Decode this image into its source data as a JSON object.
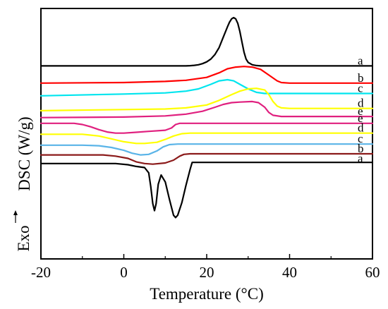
{
  "chart_data": {
    "type": "line",
    "title": "",
    "xlabel": "Temperature (°C)",
    "ylabel": "DSC (W/g)",
    "exo_label": "Exo",
    "xlim": [
      -20,
      60
    ],
    "ylim": [
      -21.8,
      0
    ],
    "grid": false,
    "legend": "none",
    "x_ticks": [
      -20,
      0,
      20,
      40,
      60
    ],
    "x_tick_labels": [
      "-20",
      "0",
      "20",
      "40",
      "60"
    ],
    "series": [
      {
        "label": "a",
        "color": "#000000",
        "baseline": -5.0,
        "points": [
          [
            -20,
            -5.0
          ],
          [
            15,
            -5.0
          ],
          [
            16,
            -4.98
          ],
          [
            17,
            -4.95
          ],
          [
            18,
            -4.9
          ],
          [
            19,
            -4.8
          ],
          [
            20,
            -4.65
          ],
          [
            21,
            -4.4
          ],
          [
            22,
            -4.0
          ],
          [
            23,
            -3.4
          ],
          [
            24,
            -2.5
          ],
          [
            25,
            -1.6
          ],
          [
            25.5,
            -1.2
          ],
          [
            26,
            -0.9
          ],
          [
            26.5,
            -0.8
          ],
          [
            27,
            -0.9
          ],
          [
            27.5,
            -1.3
          ],
          [
            28,
            -2.0
          ],
          [
            28.5,
            -2.9
          ],
          [
            29,
            -3.8
          ],
          [
            29.5,
            -4.4
          ],
          [
            30,
            -4.7
          ],
          [
            31,
            -4.9
          ],
          [
            32,
            -4.97
          ],
          [
            33,
            -5.0
          ],
          [
            60,
            -5.0
          ]
        ]
      },
      {
        "label": "b",
        "color": "#ff0000",
        "baseline": -6.5,
        "points": [
          [
            -20,
            -6.5
          ],
          [
            0,
            -6.45
          ],
          [
            10,
            -6.35
          ],
          [
            15,
            -6.25
          ],
          [
            20,
            -6.0
          ],
          [
            23,
            -5.6
          ],
          [
            25,
            -5.25
          ],
          [
            27,
            -5.1
          ],
          [
            29,
            -5.05
          ],
          [
            31,
            -5.1
          ],
          [
            33,
            -5.3
          ],
          [
            35,
            -5.8
          ],
          [
            37,
            -6.3
          ],
          [
            38,
            -6.45
          ],
          [
            40,
            -6.5
          ],
          [
            60,
            -6.5
          ]
        ]
      },
      {
        "label": "c",
        "color": "#00e5ee",
        "baseline": -7.4,
        "points": [
          [
            -20,
            -7.6
          ],
          [
            0,
            -7.45
          ],
          [
            10,
            -7.35
          ],
          [
            15,
            -7.2
          ],
          [
            18,
            -7.0
          ],
          [
            21,
            -6.6
          ],
          [
            23,
            -6.3
          ],
          [
            25,
            -6.2
          ],
          [
            26.5,
            -6.3
          ],
          [
            28,
            -6.6
          ],
          [
            30,
            -7.0
          ],
          [
            32,
            -7.3
          ],
          [
            34,
            -7.4
          ],
          [
            40,
            -7.4
          ],
          [
            60,
            -7.4
          ]
        ]
      },
      {
        "label": "d",
        "color": "#ffff00",
        "baseline": -8.7,
        "points": [
          [
            -20,
            -8.9
          ],
          [
            0,
            -8.8
          ],
          [
            10,
            -8.75
          ],
          [
            15,
            -8.65
          ],
          [
            20,
            -8.4
          ],
          [
            23,
            -8.0
          ],
          [
            26,
            -7.5
          ],
          [
            28,
            -7.2
          ],
          [
            30,
            -7.0
          ],
          [
            32,
            -6.95
          ],
          [
            34,
            -7.1
          ],
          [
            35,
            -7.5
          ],
          [
            36,
            -8.1
          ],
          [
            37,
            -8.5
          ],
          [
            38,
            -8.65
          ],
          [
            40,
            -8.7
          ],
          [
            60,
            -8.7
          ]
        ]
      },
      {
        "label": "e",
        "color": "#e0207f",
        "baseline": -9.4,
        "points": [
          [
            -20,
            -9.5
          ],
          [
            0,
            -9.45
          ],
          [
            10,
            -9.35
          ],
          [
            15,
            -9.2
          ],
          [
            19,
            -8.95
          ],
          [
            22,
            -8.6
          ],
          [
            24,
            -8.35
          ],
          [
            26,
            -8.2
          ],
          [
            28,
            -8.15
          ],
          [
            31,
            -8.1
          ],
          [
            32.5,
            -8.2
          ],
          [
            34,
            -8.6
          ],
          [
            35,
            -9.05
          ],
          [
            36,
            -9.3
          ],
          [
            38,
            -9.4
          ],
          [
            60,
            -9.4
          ]
        ]
      },
      {
        "label": "e",
        "color": "#e0207f",
        "baseline": -10.0,
        "points": [
          [
            -20,
            -10.0
          ],
          [
            -12,
            -10.0
          ],
          [
            -10,
            -10.1
          ],
          [
            -8,
            -10.3
          ],
          [
            -6,
            -10.55
          ],
          [
            -4,
            -10.75
          ],
          [
            -2,
            -10.85
          ],
          [
            0,
            -10.85
          ],
          [
            3,
            -10.78
          ],
          [
            6,
            -10.7
          ],
          [
            10,
            -10.6
          ],
          [
            11.5,
            -10.4
          ],
          [
            12.5,
            -10.1
          ],
          [
            13.5,
            -10.0
          ],
          [
            60,
            -10.0
          ]
        ]
      },
      {
        "label": "d",
        "color": "#ffff00",
        "baseline": -10.85,
        "points": [
          [
            -20,
            -10.95
          ],
          [
            -10,
            -10.95
          ],
          [
            -6,
            -11.1
          ],
          [
            -3,
            -11.35
          ],
          [
            0,
            -11.6
          ],
          [
            3,
            -11.75
          ],
          [
            5,
            -11.75
          ],
          [
            8,
            -11.65
          ],
          [
            10,
            -11.4
          ],
          [
            12,
            -11.1
          ],
          [
            14,
            -10.9
          ],
          [
            16,
            -10.85
          ],
          [
            60,
            -10.85
          ]
        ]
      },
      {
        "label": "c",
        "color": "#5ab4e8",
        "baseline": -11.8,
        "points": [
          [
            -20,
            -11.9
          ],
          [
            -10,
            -11.9
          ],
          [
            -6,
            -11.95
          ],
          [
            -3,
            -12.1
          ],
          [
            0,
            -12.35
          ],
          [
            2,
            -12.6
          ],
          [
            4,
            -12.75
          ],
          [
            6,
            -12.7
          ],
          [
            8,
            -12.4
          ],
          [
            9.5,
            -12.05
          ],
          [
            11,
            -11.85
          ],
          [
            13,
            -11.8
          ],
          [
            60,
            -11.8
          ]
        ]
      },
      {
        "label": "b",
        "color": "#8b1a1a",
        "baseline": -12.65,
        "points": [
          [
            -20,
            -12.75
          ],
          [
            -5,
            -12.75
          ],
          [
            -2,
            -12.85
          ],
          [
            1,
            -13.05
          ],
          [
            3,
            -13.35
          ],
          [
            5,
            -13.5
          ],
          [
            7,
            -13.55
          ],
          [
            10,
            -13.45
          ],
          [
            12,
            -13.2
          ],
          [
            13.5,
            -12.85
          ],
          [
            14.5,
            -12.7
          ],
          [
            16,
            -12.65
          ],
          [
            60,
            -12.65
          ]
        ]
      },
      {
        "label": "a",
        "color": "#000000",
        "baseline": -13.5,
        "points": [
          [
            -20,
            -13.5
          ],
          [
            -2,
            -13.5
          ],
          [
            1,
            -13.6
          ],
          [
            3,
            -13.75
          ],
          [
            5,
            -13.85
          ],
          [
            6,
            -14.3
          ],
          [
            6.5,
            -15.5
          ],
          [
            7,
            -17.0
          ],
          [
            7.4,
            -17.6
          ],
          [
            7.8,
            -17.0
          ],
          [
            8.3,
            -15.3
          ],
          [
            9,
            -14.5
          ],
          [
            10,
            -15.1
          ],
          [
            11,
            -16.6
          ],
          [
            12,
            -18.0
          ],
          [
            12.5,
            -18.2
          ],
          [
            13,
            -18.0
          ],
          [
            14,
            -16.9
          ],
          [
            15,
            -15.4
          ],
          [
            16,
            -14.0
          ],
          [
            16.5,
            -13.4
          ],
          [
            20,
            -13.4
          ],
          [
            60,
            -13.4
          ]
        ]
      }
    ]
  }
}
